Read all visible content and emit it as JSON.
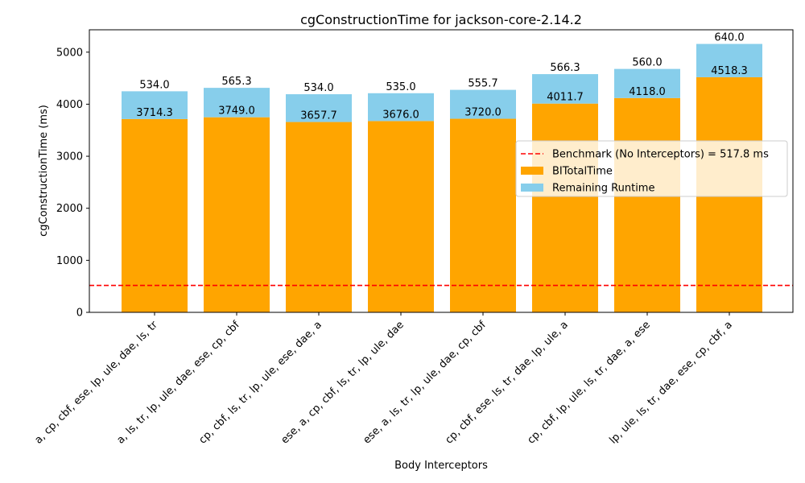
{
  "chart_data": {
    "type": "bar",
    "title": "cgConstructionTime for jackson-core-2.14.2",
    "xlabel": "Body Interceptors",
    "ylabel": "cgConstructionTime (ms)",
    "ylim": [
      0,
      5430
    ],
    "yticks": [
      0,
      1000,
      2000,
      3000,
      4000,
      5000
    ],
    "grid": false,
    "stacked": true,
    "legend_position": "center-right",
    "categories": [
      "a, cp, cbf, ese, lp, ule, dae, ls, tr",
      "a, ls, tr, lp, ule, dae, ese, cp, cbf",
      "cp, cbf, ls, tr, lp, ule, ese, dae, a",
      "ese, a, cp, cbf, ls, tr, lp, ule, dae",
      "ese, a, ls, tr, lp, ule, dae, cp, cbf",
      "cp, cbf, ese, ls, tr, dae, lp, ule, a",
      "cp, cbf, lp, ule, ls, tr, dae, a, ese",
      "lp, ule, ls, tr, dae, ese, cp, cbf, a"
    ],
    "series": [
      {
        "name": "BITotalTime",
        "color": "#ffa500",
        "values": [
          3714.3,
          3749.0,
          3657.7,
          3676.0,
          3720.0,
          4011.7,
          4118.0,
          4518.3
        ],
        "labels": [
          "3714.3",
          "3749.0",
          "3657.7",
          "3676.0",
          "3720.0",
          "4011.7",
          "4118.0",
          "4518.3"
        ]
      },
      {
        "name": "Remaining Runtime",
        "color": "#87ceeb",
        "values": [
          534.0,
          565.3,
          534.0,
          535.0,
          555.7,
          566.3,
          560.0,
          640.0
        ],
        "labels": [
          "534.0",
          "565.3",
          "534.0",
          "535.0",
          "555.7",
          "566.3",
          "560.0",
          "640.0"
        ]
      }
    ],
    "benchmark": {
      "label": "Benchmark (No Interceptors) = 517.8 ms",
      "value": 517.8,
      "color": "#ff0000",
      "style": "dashed"
    }
  }
}
